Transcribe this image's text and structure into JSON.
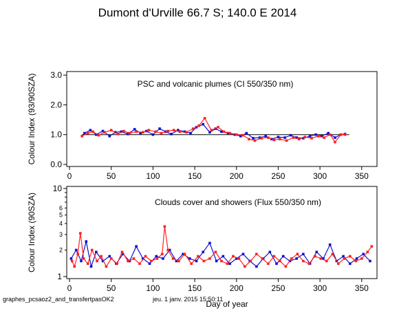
{
  "title": "Dumont d'Urville  66.7 S; 140.0 E   2014",
  "footer": {
    "left": "graphes_pcsaoz2_and_transfertpasOK2",
    "center": "jeu. 1 janv. 2015 15:50:11"
  },
  "colors": {
    "series_blue": "#1010d0",
    "series_red": "#ff2020",
    "axis": "#000000"
  },
  "chart_data": [
    {
      "type": "line",
      "annotation": "PSC and volcanic plumes (CI 550/350 nm)",
      "ylabel": "Colour Index (93/90SZA)",
      "xlabel": "",
      "xlim": [
        0,
        365
      ],
      "ylim": [
        0,
        3.05
      ],
      "y_scale": "linear",
      "xticks": [
        0,
        50,
        100,
        150,
        200,
        250,
        300,
        350
      ],
      "yticks": [
        "0.0",
        "1.0",
        "2.0",
        "3.0"
      ],
      "reference_line_y": 1.0,
      "grid": false,
      "series": [
        {
          "color": "blue",
          "x": [
            18,
            25,
            32,
            40,
            48,
            55,
            62,
            70,
            78,
            85,
            92,
            100,
            108,
            115,
            122,
            130,
            138,
            145,
            152,
            160,
            168,
            175,
            182,
            190,
            198,
            205,
            212,
            220,
            228,
            235,
            242,
            250,
            258,
            265,
            272,
            280,
            288,
            295,
            302,
            310,
            318,
            325,
            330
          ],
          "values": [
            1.05,
            1.15,
            1.0,
            1.12,
            0.95,
            1.08,
            1.1,
            1.02,
            1.18,
            1.05,
            1.12,
            1.0,
            1.2,
            1.1,
            1.02,
            1.15,
            1.1,
            1.05,
            1.25,
            1.35,
            1.08,
            1.2,
            1.1,
            1.05,
            1.0,
            0.95,
            1.05,
            0.88,
            0.9,
            0.95,
            0.85,
            0.92,
            0.9,
            0.98,
            0.9,
            0.88,
            0.95,
            1.0,
            0.95,
            1.05,
            0.9,
            1.0,
            1.02
          ]
        },
        {
          "color": "red",
          "x": [
            15,
            22,
            28,
            35,
            42,
            50,
            58,
            65,
            72,
            80,
            88,
            95,
            103,
            110,
            118,
            125,
            132,
            140,
            148,
            155,
            162,
            170,
            178,
            185,
            192,
            200,
            208,
            215,
            222,
            230,
            238,
            245,
            252,
            260,
            268,
            275,
            282,
            290,
            298,
            305,
            312,
            318,
            325,
            330
          ],
          "values": [
            0.95,
            1.05,
            1.1,
            0.98,
            1.08,
            1.15,
            1.02,
            1.12,
            1.05,
            1.1,
            1.08,
            1.15,
            1.1,
            1.05,
            1.12,
            1.15,
            1.1,
            1.08,
            1.2,
            1.3,
            1.55,
            1.15,
            1.25,
            1.1,
            1.05,
            1.0,
            0.98,
            0.85,
            0.8,
            0.88,
            0.9,
            0.82,
            0.85,
            0.8,
            0.9,
            0.85,
            0.92,
            0.88,
            0.95,
            0.9,
            1.0,
            0.75,
            1.0,
            1.0
          ]
        }
      ]
    },
    {
      "type": "line",
      "annotation": "Clouds cover and showers (Flux 550/350 nm)",
      "ylabel": "Colour Index (90SZA)",
      "xlabel": "Day of year",
      "xlim": [
        0,
        365
      ],
      "ylim": [
        1,
        10
      ],
      "y_scale": "log",
      "xticks": [
        0,
        50,
        100,
        150,
        200,
        250,
        300,
        350
      ],
      "yticks_major": [
        "1",
        "10"
      ],
      "yticks_minor": [
        "2",
        "3",
        "4",
        "5",
        "6"
      ],
      "grid": false,
      "series": [
        {
          "color": "blue",
          "x": [
            2,
            8,
            14,
            20,
            26,
            32,
            40,
            48,
            56,
            64,
            72,
            80,
            88,
            96,
            104,
            112,
            120,
            128,
            136,
            144,
            152,
            160,
            168,
            176,
            184,
            192,
            200,
            208,
            216,
            224,
            232,
            240,
            248,
            256,
            264,
            272,
            280,
            288,
            296,
            304,
            312,
            320,
            328,
            336,
            344,
            352,
            360
          ],
          "values": [
            1.6,
            2.0,
            1.5,
            2.5,
            1.3,
            1.9,
            1.5,
            1.7,
            1.4,
            1.8,
            1.5,
            2.2,
            1.6,
            1.4,
            1.7,
            1.6,
            2.0,
            1.5,
            1.8,
            1.6,
            1.5,
            1.9,
            2.4,
            1.5,
            1.7,
            1.4,
            1.6,
            1.8,
            1.5,
            1.3,
            1.6,
            1.9,
            1.4,
            1.7,
            1.5,
            1.6,
            1.8,
            1.4,
            1.9,
            1.6,
            2.3,
            1.5,
            1.7,
            1.4,
            1.6,
            1.8,
            1.5
          ]
        },
        {
          "color": "red",
          "x": [
            3,
            6,
            10,
            13,
            17,
            22,
            27,
            33,
            38,
            44,
            50,
            57,
            63,
            70,
            77,
            84,
            91,
            98,
            105,
            111,
            114,
            118,
            124,
            131,
            138,
            146,
            154,
            161,
            168,
            175,
            182,
            189,
            196,
            203,
            210,
            217,
            224,
            231,
            238,
            245,
            252,
            259,
            266,
            273,
            280,
            287,
            294,
            301,
            308,
            315,
            322,
            329,
            336,
            343,
            350,
            357,
            362
          ],
          "values": [
            1.5,
            1.3,
            1.8,
            3.1,
            1.6,
            1.4,
            2.0,
            1.5,
            1.7,
            1.3,
            1.6,
            1.4,
            1.9,
            1.5,
            1.6,
            1.4,
            1.7,
            1.5,
            1.6,
            1.8,
            3.7,
            2.0,
            1.6,
            1.5,
            1.8,
            1.4,
            1.7,
            1.5,
            1.6,
            1.9,
            1.5,
            1.4,
            1.7,
            1.6,
            1.3,
            1.5,
            1.8,
            1.6,
            1.4,
            1.7,
            1.5,
            1.3,
            1.6,
            1.8,
            1.5,
            1.4,
            1.7,
            1.6,
            1.5,
            1.8,
            1.4,
            1.6,
            1.7,
            1.5,
            1.6,
            1.9,
            2.2
          ]
        }
      ]
    }
  ]
}
